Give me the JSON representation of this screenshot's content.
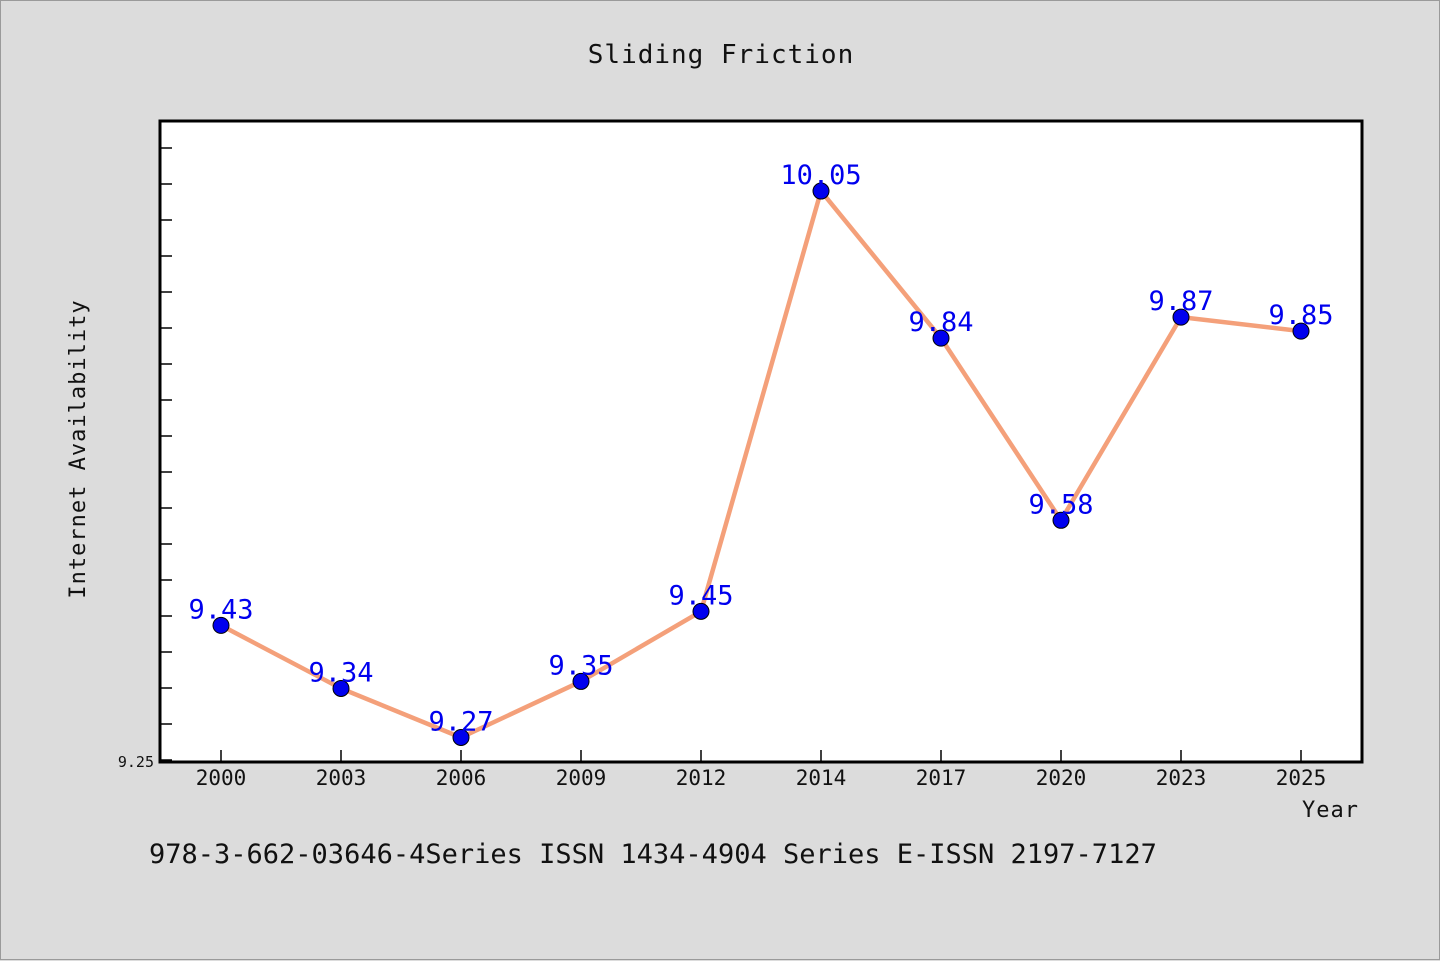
{
  "chart_data": {
    "type": "line",
    "title": "Sliding Friction",
    "xlabel": "Year",
    "ylabel": "Internet Availability",
    "categories": [
      "2000",
      "2003",
      "2006",
      "2009",
      "2012",
      "2014",
      "2017",
      "2020",
      "2023",
      "2025"
    ],
    "series": [
      {
        "values": [
          9.43,
          9.34,
          9.27,
          9.35,
          9.45,
          10.05,
          9.84,
          9.58,
          9.87,
          9.85
        ],
        "labels": [
          "9.43",
          "9.34",
          "9.27",
          "9.35",
          "9.45",
          "10.05",
          "9.84",
          "9.58",
          "9.87",
          "9.85"
        ]
      }
    ],
    "ylim": [
      9.235,
      10.15
    ],
    "y_tick_labels": [
      "9.25"
    ],
    "grid": false,
    "legend": "none"
  },
  "footer": {
    "text": "978-3-662-03646-4Series ISSN 1434-4904 Series E-ISSN 2197-7127"
  },
  "colors": {
    "background": "#dcdcdc",
    "plot_background": "#ffffff",
    "line": "#f4a07a",
    "marker": "#0000ee",
    "data_label": "#0000ee"
  }
}
